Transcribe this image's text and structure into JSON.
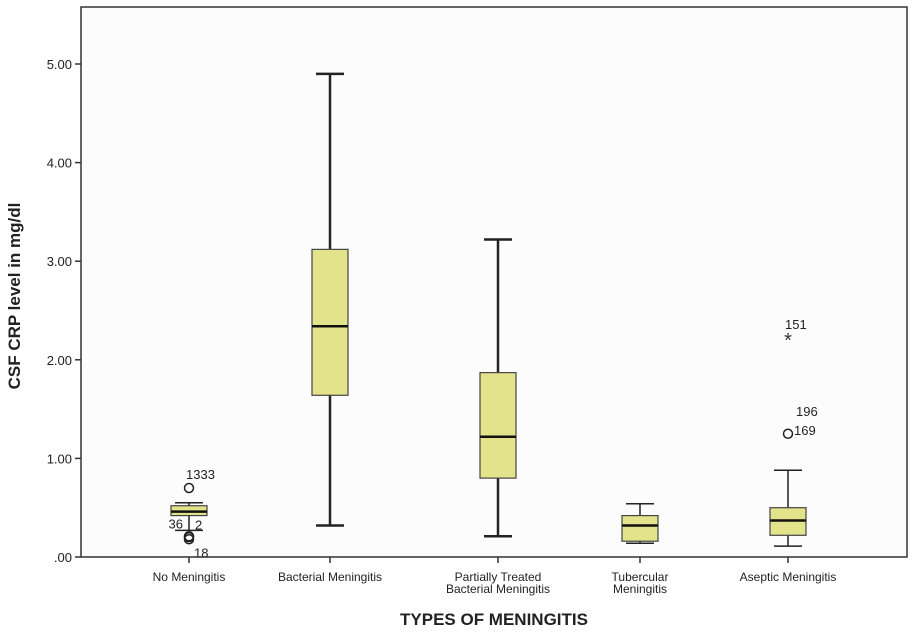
{
  "chart_data": {
    "type": "boxplot",
    "title": "",
    "xlabel": "TYPES OF MENINGITIS",
    "ylabel": "CSF CRP level in mg/dl",
    "ylim": [
      0,
      5.5
    ],
    "yticks": [
      ".00",
      "1.00",
      "2.00",
      "3.00",
      "4.00",
      "5.00"
    ],
    "ytick_values": [
      0,
      1,
      2,
      3,
      4,
      5
    ],
    "grid": false,
    "box_color": "#e3e38c",
    "categories": [
      {
        "label_lines": [
          "No Meningitis"
        ],
        "min": 0.27,
        "q1": 0.42,
        "median": 0.46,
        "q3": 0.52,
        "max": 0.55,
        "outliers": [
          {
            "value": 0.7,
            "marker": "circle",
            "label": "1333",
            "label_side": "top"
          },
          {
            "value": 0.21,
            "marker": "circle",
            "label": "36",
            "label_side": "left"
          },
          {
            "value": 0.2,
            "marker": "circle",
            "label": "2",
            "label_side": "right"
          },
          {
            "value": 0.18,
            "marker": "circle",
            "label": "18",
            "label_side": "below"
          }
        ]
      },
      {
        "label_lines": [
          "Bacterial Meningitis"
        ],
        "min": 0.32,
        "q1": 1.64,
        "median": 2.34,
        "q3": 3.12,
        "max": 4.9,
        "outliers": []
      },
      {
        "label_lines": [
          "Partially Treated",
          "Bacterial Meningitis"
        ],
        "min": 0.21,
        "q1": 0.8,
        "median": 1.22,
        "q3": 1.87,
        "max": 3.22,
        "outliers": []
      },
      {
        "label_lines": [
          "Tubercular",
          "Meningitis"
        ],
        "min": 0.14,
        "q1": 0.16,
        "median": 0.32,
        "q3": 0.42,
        "max": 0.54,
        "outliers": []
      },
      {
        "label_lines": [
          "Aseptic Meningitis"
        ],
        "min": 0.11,
        "q1": 0.22,
        "median": 0.37,
        "q3": 0.5,
        "max": 0.88,
        "outliers": [
          {
            "value": 2.22,
            "marker": "star",
            "label": "151",
            "label_side": "top"
          },
          {
            "value": 1.25,
            "marker": "circle",
            "label": "169",
            "label_side": "right"
          },
          {
            "value": 1.25,
            "marker": "none",
            "label": "196",
            "label_side": "top"
          }
        ]
      }
    ]
  }
}
